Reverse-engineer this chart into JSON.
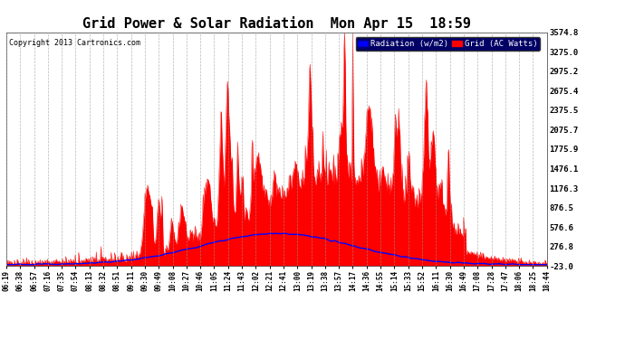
{
  "title": "Grid Power & Solar Radiation  Mon Apr 15  18:59",
  "copyright": "Copyright 2013 Cartronics.com",
  "background_color": "#ffffff",
  "plot_bg_color": "#ffffff",
  "grid_color": "#999999",
  "yticks": [
    -23.0,
    276.8,
    576.6,
    876.5,
    1176.3,
    1476.1,
    1775.9,
    2075.7,
    2375.5,
    2675.4,
    2975.2,
    3275.0,
    3574.8
  ],
  "ymin": -23.0,
  "ymax": 3574.8,
  "radiation_color": "#0000ff",
  "fill_color": "#ff0000",
  "xtick_labels": [
    "06:19",
    "06:38",
    "06:57",
    "07:16",
    "07:35",
    "07:54",
    "08:13",
    "08:32",
    "08:51",
    "09:11",
    "09:30",
    "09:49",
    "10:08",
    "10:27",
    "10:46",
    "11:05",
    "11:24",
    "11:43",
    "12:02",
    "12:21",
    "12:41",
    "13:00",
    "13:19",
    "13:38",
    "13:57",
    "14:17",
    "14:36",
    "14:55",
    "15:14",
    "15:33",
    "15:52",
    "16:11",
    "16:30",
    "16:49",
    "17:08",
    "17:28",
    "17:47",
    "18:06",
    "18:25",
    "18:44"
  ],
  "num_points": 800
}
